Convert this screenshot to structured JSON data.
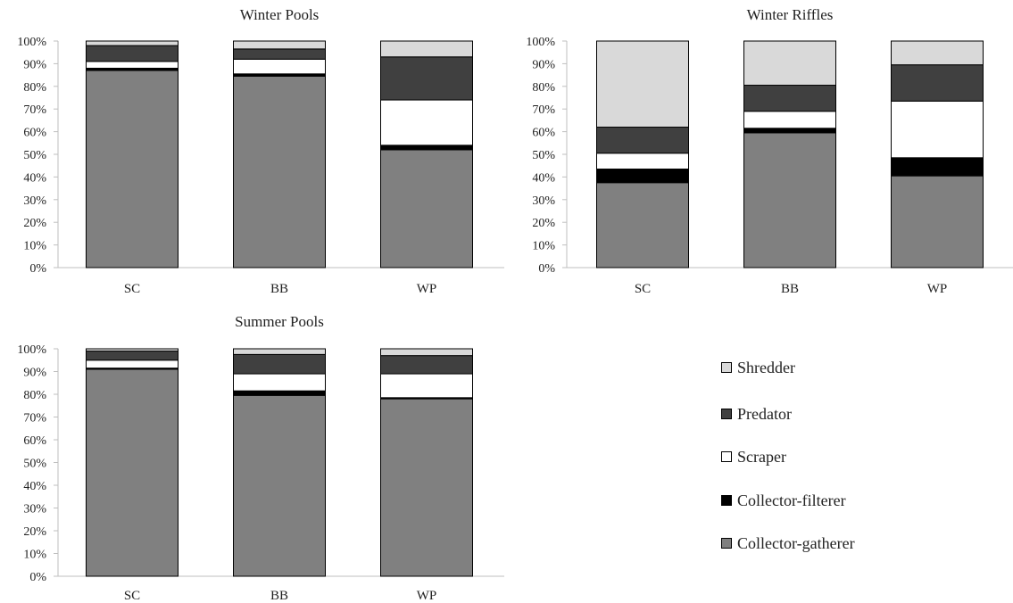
{
  "chart_data": [
    {
      "type": "bar",
      "stacked": true,
      "percent": true,
      "title": "Winter Pools",
      "categories": [
        "SC",
        "BB",
        "WP"
      ],
      "ylim": [
        0,
        100
      ],
      "yticks": [
        "0%",
        "10%",
        "20%",
        "30%",
        "40%",
        "50%",
        "60%",
        "70%",
        "80%",
        "90%",
        "100%"
      ],
      "series": [
        {
          "name": "Collector-gatherer",
          "values": [
            87,
            84.5,
            52
          ]
        },
        {
          "name": "Collector-filterer",
          "values": [
            1,
            1,
            2
          ]
        },
        {
          "name": "Scraper",
          "values": [
            3,
            6.5,
            20
          ]
        },
        {
          "name": "Predator",
          "values": [
            7,
            4.5,
            19
          ]
        },
        {
          "name": "Shredder",
          "values": [
            2,
            3.5,
            7
          ]
        }
      ]
    },
    {
      "type": "bar",
      "stacked": true,
      "percent": true,
      "title": "Winter Riffles",
      "categories": [
        "SC",
        "BB",
        "WP"
      ],
      "ylim": [
        0,
        100
      ],
      "yticks": [
        "0%",
        "10%",
        "20%",
        "30%",
        "40%",
        "50%",
        "60%",
        "70%",
        "80%",
        "90%",
        "100%"
      ],
      "series": [
        {
          "name": "Collector-gatherer",
          "values": [
            37.5,
            59.5,
            40.5
          ]
        },
        {
          "name": "Collector-filterer",
          "values": [
            6,
            2,
            8
          ]
        },
        {
          "name": "Scraper",
          "values": [
            7,
            7.5,
            25
          ]
        },
        {
          "name": "Predator",
          "values": [
            11.5,
            11.5,
            16
          ]
        },
        {
          "name": "Shredder",
          "values": [
            38,
            19.5,
            10.5
          ]
        }
      ]
    },
    {
      "type": "bar",
      "stacked": true,
      "percent": true,
      "title": "Summer Pools",
      "categories": [
        "SC",
        "BB",
        "WP"
      ],
      "ylim": [
        0,
        100
      ],
      "yticks": [
        "0%",
        "10%",
        "20%",
        "30%",
        "40%",
        "50%",
        "60%",
        "70%",
        "80%",
        "90%",
        "100%"
      ],
      "series": [
        {
          "name": "Collector-gatherer",
          "values": [
            91,
            79.5,
            78
          ]
        },
        {
          "name": "Collector-filterer",
          "values": [
            0.5,
            2,
            0.5
          ]
        },
        {
          "name": "Scraper",
          "values": [
            3.5,
            7.5,
            10.5
          ]
        },
        {
          "name": "Predator",
          "values": [
            4,
            8.5,
            8
          ]
        },
        {
          "name": "Shredder",
          "values": [
            1,
            2.5,
            3
          ]
        }
      ]
    }
  ],
  "legend": {
    "items": [
      {
        "label": "Shredder",
        "color": "#d9d9d9"
      },
      {
        "label": "Predator",
        "color": "#404040"
      },
      {
        "label": "Scraper",
        "color": "#ffffff"
      },
      {
        "label": "Collector-filterer",
        "color": "#000000"
      },
      {
        "label": "Collector-gatherer",
        "color": "#808080"
      }
    ]
  },
  "colors": {
    "Collector-gatherer": "#808080",
    "Collector-filterer": "#000000",
    "Scraper": "#ffffff",
    "Predator": "#404040",
    "Shredder": "#d9d9d9",
    "axis": "#bfbfbf",
    "text": "#222222"
  }
}
